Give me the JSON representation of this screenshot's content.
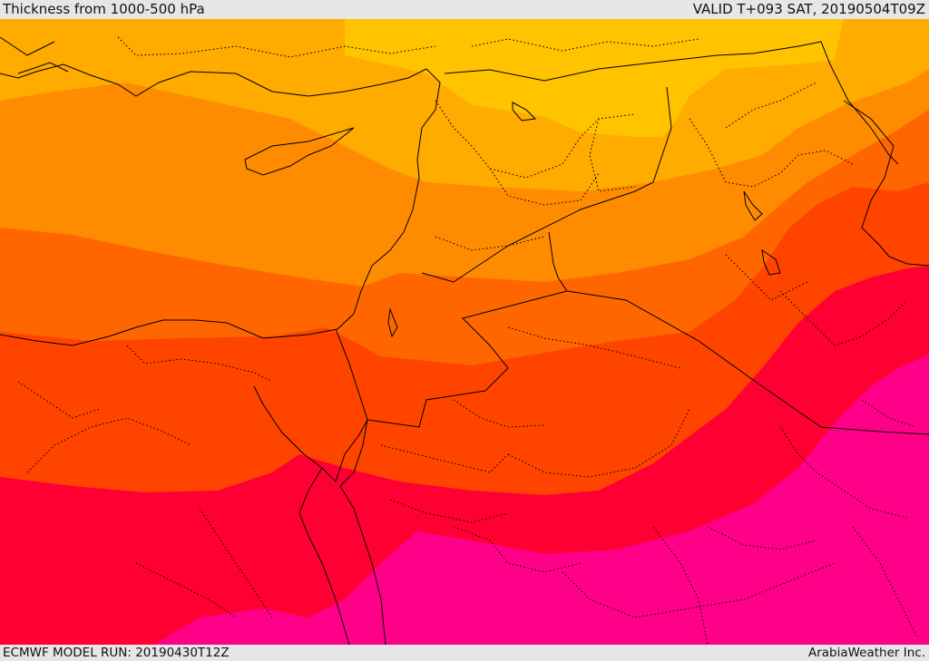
{
  "header": {
    "title": "Thickness from 1000-500 hPa",
    "valid": "VALID T+093 SAT, 20190504T09Z"
  },
  "footer": {
    "model_run": "ECMWF MODEL RUN: 20190430T12Z",
    "credit": "ArabiaWeather Inc."
  },
  "map": {
    "band_colors": [
      "#ffc300",
      "#ffab00",
      "#ff8c00",
      "#ff6600",
      "#ff4400",
      "#ff0033",
      "#ff0088"
    ],
    "border_color": "#000000"
  }
}
